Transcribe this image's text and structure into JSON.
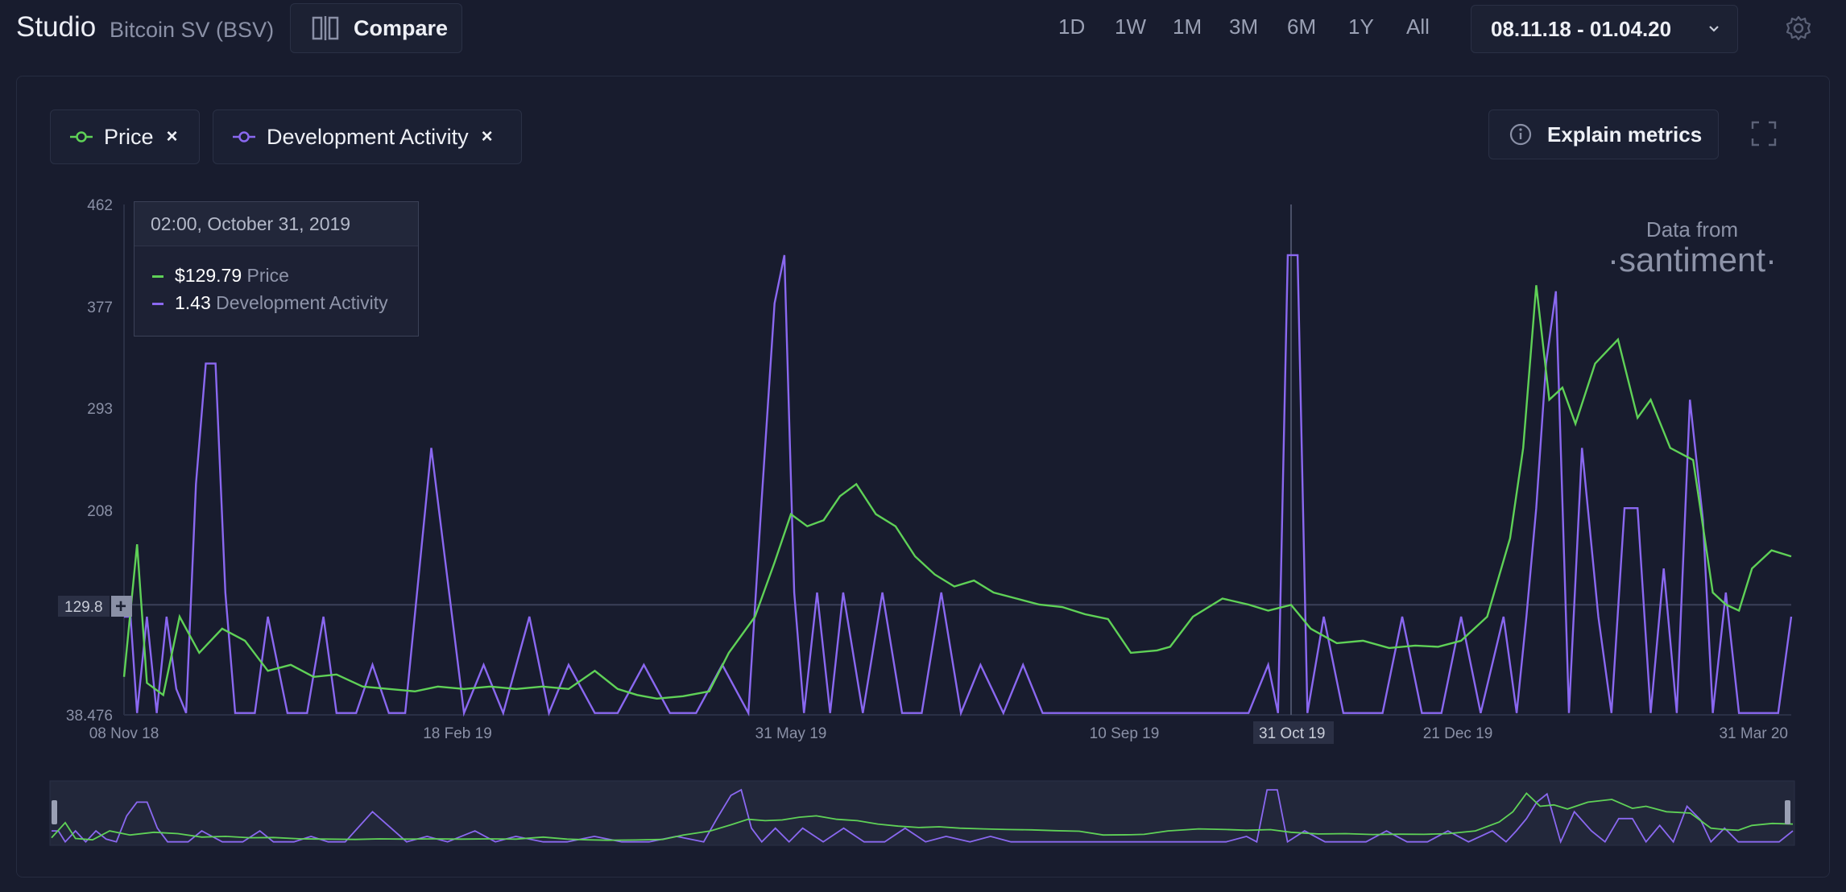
{
  "header": {
    "brand": "Studio",
    "asset": "Bitcoin SV (BSV)",
    "compare_label": "Compare",
    "ranges": [
      "1D",
      "1W",
      "1M",
      "3M",
      "6M",
      "1Y",
      "All"
    ],
    "date_range": "08.11.18 - 01.04.20"
  },
  "metrics": [
    {
      "label": "Price",
      "color": "#5fd157"
    },
    {
      "label": "Development Activity",
      "color": "#8a68f0"
    }
  ],
  "explain_label": "Explain metrics",
  "watermark": {
    "line1": "Data from",
    "line2": "·santiment·"
  },
  "tooltip": {
    "datetime": "02:00, October 31, 2019",
    "price_value": "$129.79",
    "price_label": "Price",
    "dev_value": "1.43",
    "dev_label": "Development Activity"
  },
  "chart_data": {
    "type": "line",
    "y_ticks": [
      "462",
      "377",
      "293",
      "208",
      "129.8",
      "38.476"
    ],
    "y_range": [
      38.476,
      462
    ],
    "x_ticks": [
      "08 Nov 18",
      "18 Feb 19",
      "31 May 19",
      "10 Sep 19",
      "31 Oct 19",
      "21 Dec 19",
      "31 Mar 20"
    ],
    "crosshair": {
      "x_label": "31 Oct 19",
      "y_label": "129.8"
    },
    "series": [
      {
        "name": "Price",
        "x": [
          "2018-11-08",
          "2018-11-12",
          "2018-11-15",
          "2018-11-20",
          "2018-11-25",
          "2018-12-01",
          "2018-12-08",
          "2018-12-15",
          "2018-12-22",
          "2018-12-29",
          "2019-01-05",
          "2019-01-12",
          "2019-01-20",
          "2019-01-28",
          "2019-02-05",
          "2019-02-12",
          "2019-02-20",
          "2019-02-28",
          "2019-03-08",
          "2019-03-16",
          "2019-03-24",
          "2019-04-01",
          "2019-04-08",
          "2019-04-14",
          "2019-04-20",
          "2019-04-28",
          "2019-05-06",
          "2019-05-12",
          "2019-05-20",
          "2019-05-26",
          "2019-05-31",
          "2019-06-05",
          "2019-06-10",
          "2019-06-15",
          "2019-06-20",
          "2019-06-26",
          "2019-07-02",
          "2019-07-08",
          "2019-07-14",
          "2019-07-20",
          "2019-07-26",
          "2019-08-01",
          "2019-08-08",
          "2019-08-15",
          "2019-08-22",
          "2019-08-29",
          "2019-09-05",
          "2019-09-12",
          "2019-09-20",
          "2019-09-24",
          "2019-10-01",
          "2019-10-10",
          "2019-10-18",
          "2019-10-24",
          "2019-10-31",
          "2019-11-06",
          "2019-11-14",
          "2019-11-22",
          "2019-11-30",
          "2019-12-08",
          "2019-12-15",
          "2019-12-22",
          "2019-12-30",
          "2020-01-06",
          "2020-01-10",
          "2020-01-14",
          "2020-01-18",
          "2020-01-22",
          "2020-01-26",
          "2020-02-01",
          "2020-02-08",
          "2020-02-14",
          "2020-02-18",
          "2020-02-24",
          "2020-03-02",
          "2020-03-08",
          "2020-03-12",
          "2020-03-16",
          "2020-03-20",
          "2020-03-26",
          "2020-04-01"
        ],
        "values": [
          70,
          180,
          65,
          55,
          120,
          90,
          110,
          100,
          75,
          80,
          70,
          72,
          62,
          60,
          58,
          62,
          60,
          62,
          60,
          62,
          60,
          75,
          60,
          55,
          52,
          54,
          58,
          90,
          120,
          165,
          205,
          195,
          200,
          220,
          230,
          205,
          195,
          170,
          155,
          145,
          150,
          140,
          135,
          130,
          128,
          122,
          118,
          90,
          92,
          95,
          120,
          135,
          130,
          125,
          129.8,
          110,
          98,
          100,
          94,
          96,
          95,
          100,
          120,
          185,
          260,
          395,
          300,
          310,
          280,
          330,
          350,
          285,
          300,
          260,
          250,
          140,
          130,
          125,
          160,
          175,
          170
        ]
      },
      {
        "name": "Development Activity",
        "x": [
          "2018-11-08",
          "2018-11-10",
          "2018-11-12",
          "2018-11-15",
          "2018-11-18",
          "2018-11-21",
          "2018-11-24",
          "2018-11-27",
          "2018-11-30",
          "2018-12-03",
          "2018-12-06",
          "2018-12-09",
          "2018-12-12",
          "2018-12-15",
          "2018-12-18",
          "2018-12-22",
          "2018-12-28",
          "2019-01-03",
          "2019-01-08",
          "2019-01-12",
          "2019-01-18",
          "2019-01-23",
          "2019-01-28",
          "2019-02-02",
          "2019-02-10",
          "2019-02-20",
          "2019-02-26",
          "2019-03-04",
          "2019-03-12",
          "2019-03-18",
          "2019-03-24",
          "2019-04-01",
          "2019-04-08",
          "2019-04-16",
          "2019-04-24",
          "2019-05-02",
          "2019-05-10",
          "2019-05-18",
          "2019-05-22",
          "2019-05-26",
          "2019-05-29",
          "2019-06-01",
          "2019-06-04",
          "2019-06-08",
          "2019-06-12",
          "2019-06-16",
          "2019-06-22",
          "2019-06-28",
          "2019-07-04",
          "2019-07-10",
          "2019-07-16",
          "2019-07-22",
          "2019-07-28",
          "2019-08-04",
          "2019-08-10",
          "2019-08-16",
          "2019-08-22",
          "2019-09-02",
          "2019-09-14",
          "2019-09-25",
          "2019-10-08",
          "2019-10-18",
          "2019-10-24",
          "2019-10-27",
          "2019-10-30",
          "2019-11-02",
          "2019-11-05",
          "2019-11-10",
          "2019-11-16",
          "2019-11-22",
          "2019-11-28",
          "2019-12-04",
          "2019-12-10",
          "2019-12-16",
          "2019-12-22",
          "2019-12-28",
          "2020-01-04",
          "2020-01-08",
          "2020-01-11",
          "2020-01-14",
          "2020-01-17",
          "2020-01-20",
          "2020-01-24",
          "2020-01-28",
          "2020-02-02",
          "2020-02-06",
          "2020-02-10",
          "2020-02-14",
          "2020-02-18",
          "2020-02-22",
          "2020-02-26",
          "2020-03-01",
          "2020-03-05",
          "2020-03-08",
          "2020-03-12",
          "2020-03-16",
          "2020-03-20",
          "2020-03-24",
          "2020-03-28",
          "2020-04-01"
        ],
        "values": [
          120,
          120,
          40,
          120,
          40,
          120,
          60,
          40,
          230,
          330,
          330,
          140,
          40,
          40,
          40,
          120,
          40,
          40,
          120,
          40,
          40,
          80,
          40,
          40,
          260,
          40,
          80,
          40,
          120,
          40,
          80,
          40,
          40,
          80,
          40,
          40,
          80,
          40,
          215,
          380,
          420,
          140,
          40,
          140,
          40,
          140,
          40,
          140,
          40,
          40,
          140,
          40,
          80,
          40,
          80,
          40,
          40,
          40,
          40,
          40,
          40,
          40,
          80,
          40,
          420,
          420,
          40,
          120,
          40,
          40,
          40,
          120,
          40,
          40,
          120,
          40,
          120,
          40,
          120,
          210,
          330,
          390,
          40,
          260,
          120,
          40,
          210,
          210,
          40,
          160,
          40,
          300,
          200,
          40,
          140,
          40,
          40,
          40,
          40,
          120
        ]
      }
    ]
  }
}
